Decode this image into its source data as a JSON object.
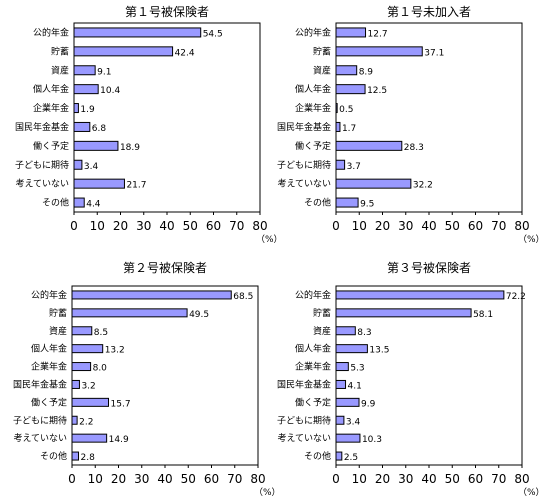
{
  "chart_data": [
    {
      "type": "bar",
      "orientation": "horizontal",
      "title": "第１号被保険者",
      "categories": [
        "公的年金",
        "貯蓄",
        "資産",
        "個人年金",
        "企業年金",
        "国民年金基金",
        "働く予定",
        "子どもに期待",
        "考えていない",
        "その他"
      ],
      "values": [
        54.5,
        42.4,
        9.1,
        10.4,
        1.9,
        6.8,
        18.9,
        3.4,
        21.7,
        4.4
      ],
      "value_labels": [
        "54.5",
        "42.4",
        "9.1",
        "10.4",
        "1.9",
        "6.8",
        "18.9",
        "3.4",
        "21.7",
        "4.4"
      ],
      "xlim": [
        0,
        80
      ],
      "xticks": [
        "0",
        "10",
        "20",
        "30",
        "40",
        "50",
        "60",
        "70",
        "80"
      ],
      "unit": "（%）",
      "grid": false,
      "bar_color": "#9999ff"
    },
    {
      "type": "bar",
      "orientation": "horizontal",
      "title": "第１号未加入者",
      "categories": [
        "公的年金",
        "貯蓄",
        "資産",
        "個人年金",
        "企業年金",
        "国民年金基金",
        "働く予定",
        "子どもに期待",
        "考えていない",
        "その他"
      ],
      "values": [
        12.7,
        37.1,
        8.9,
        12.5,
        0.5,
        1.7,
        28.3,
        3.7,
        32.2,
        9.5
      ],
      "value_labels": [
        "12.7",
        "37.1",
        "8.9",
        "12.5",
        "0.5",
        "1.7",
        "28.3",
        "3.7",
        "32.2",
        "9.5"
      ],
      "xlim": [
        0,
        80
      ],
      "xticks": [
        "0",
        "10",
        "20",
        "30",
        "40",
        "50",
        "60",
        "70",
        "80"
      ],
      "unit": "（%）",
      "grid": false,
      "bar_color": "#9999ff"
    },
    {
      "type": "bar",
      "orientation": "horizontal",
      "title": "第２号被保険者",
      "categories": [
        "公的年金",
        "貯蓄",
        "資産",
        "個人年金",
        "企業年金",
        "国民年金基金",
        "働く予定",
        "子どもに期待",
        "考えていない",
        "その他"
      ],
      "values": [
        68.5,
        49.5,
        8.5,
        13.2,
        8.0,
        3.2,
        15.7,
        2.2,
        14.9,
        2.8
      ],
      "value_labels": [
        "68.5",
        "49.5",
        "8.5",
        "13.2",
        "8.0",
        "3.2",
        "15.7",
        "2.2",
        "14.9",
        "2.8"
      ],
      "xlim": [
        0,
        80
      ],
      "xticks": [
        "0",
        "10",
        "20",
        "30",
        "40",
        "50",
        "60",
        "70",
        "80"
      ],
      "unit": "（%）",
      "grid": false,
      "bar_color": "#9999ff"
    },
    {
      "type": "bar",
      "orientation": "horizontal",
      "title": "第３号被保険者",
      "categories": [
        "公的年金",
        "貯蓄",
        "資産",
        "個人年金",
        "企業年金",
        "国民年金基金",
        "働く予定",
        "子どもに期待",
        "考えていない",
        "その他"
      ],
      "values": [
        72.2,
        58.1,
        8.3,
        13.5,
        5.3,
        4.1,
        9.9,
        3.4,
        10.3,
        2.5
      ],
      "value_labels": [
        "72.2",
        "58.1",
        "8.3",
        "13.5",
        "5.3",
        "4.1",
        "9.9",
        "3.4",
        "10.3",
        "2.5"
      ],
      "xlim": [
        0,
        80
      ],
      "xticks": [
        "0",
        "10",
        "20",
        "30",
        "40",
        "50",
        "60",
        "70",
        "80"
      ],
      "unit": "（%）",
      "grid": false,
      "bar_color": "#9999ff"
    }
  ]
}
